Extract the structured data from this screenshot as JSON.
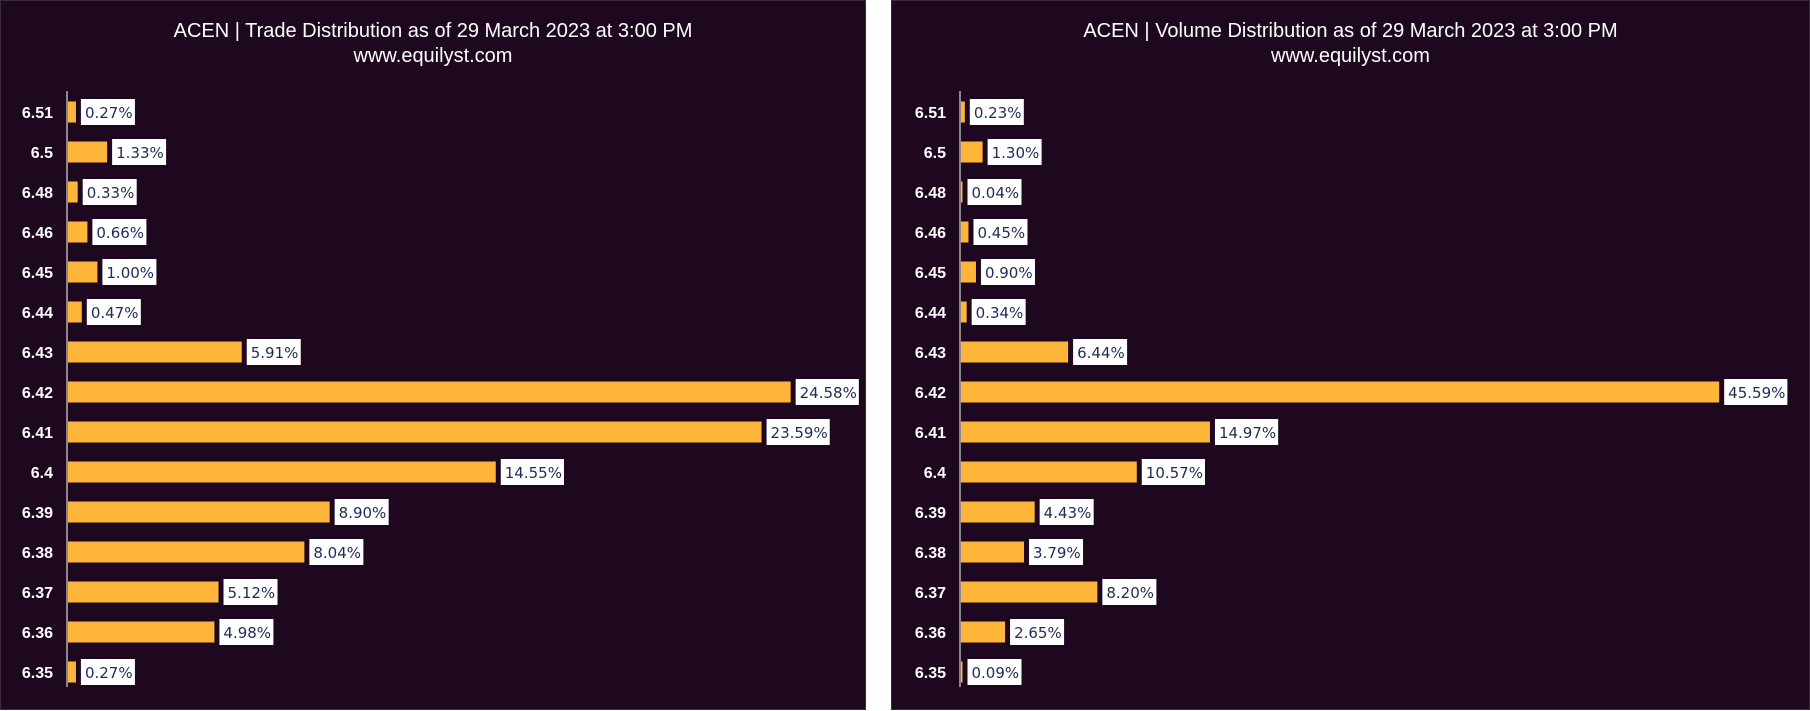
{
  "chart_data": [
    {
      "type": "bar",
      "orientation": "horizontal",
      "title": "ACEN | Trade Distribution as of 29 March 2023 at 3:00 PM",
      "subtitle": "www.equilyst.com",
      "categories": [
        "6.51",
        "6.5",
        "6.48",
        "6.46",
        "6.45",
        "6.44",
        "6.43",
        "6.42",
        "6.41",
        "6.4",
        "6.39",
        "6.38",
        "6.37",
        "6.36",
        "6.35"
      ],
      "values": [
        0.27,
        1.33,
        0.33,
        0.66,
        1.0,
        0.47,
        5.91,
        24.58,
        23.59,
        14.55,
        8.9,
        8.04,
        5.12,
        4.98,
        0.27
      ],
      "labels": [
        "0.27%",
        "1.33%",
        "0.33%",
        "0.66%",
        "1.00%",
        "0.47%",
        "5.91%",
        "24.58%",
        "23.59%",
        "14.55%",
        "8.90%",
        "8.04%",
        "5.12%",
        "4.98%",
        "0.27%"
      ],
      "xlim": [
        0,
        25
      ],
      "grid": false,
      "colors": {
        "bar": "#ffb43a",
        "background": "#1d0820"
      }
    },
    {
      "type": "bar",
      "orientation": "horizontal",
      "title": "ACEN | Volume Distribution as of 29 March 2023 at 3:00 PM",
      "subtitle": "www.equilyst.com",
      "categories": [
        "6.51",
        "6.5",
        "6.48",
        "6.46",
        "6.45",
        "6.44",
        "6.43",
        "6.42",
        "6.41",
        "6.4",
        "6.39",
        "6.38",
        "6.37",
        "6.36",
        "6.35"
      ],
      "values": [
        0.23,
        1.3,
        0.04,
        0.45,
        0.9,
        0.34,
        6.44,
        45.59,
        14.97,
        10.57,
        4.43,
        3.79,
        8.2,
        2.65,
        0.09
      ],
      "labels": [
        "0.23%",
        "1.30%",
        "0.04%",
        "0.45%",
        "0.90%",
        "0.34%",
        "6.44%",
        "45.59%",
        "14.97%",
        "10.57%",
        "4.43%",
        "3.79%",
        "8.20%",
        "2.65%",
        "0.09%"
      ],
      "xlim": [
        0,
        46
      ],
      "grid": false,
      "colors": {
        "bar": "#ffb43a",
        "background": "#1d0820"
      }
    }
  ]
}
